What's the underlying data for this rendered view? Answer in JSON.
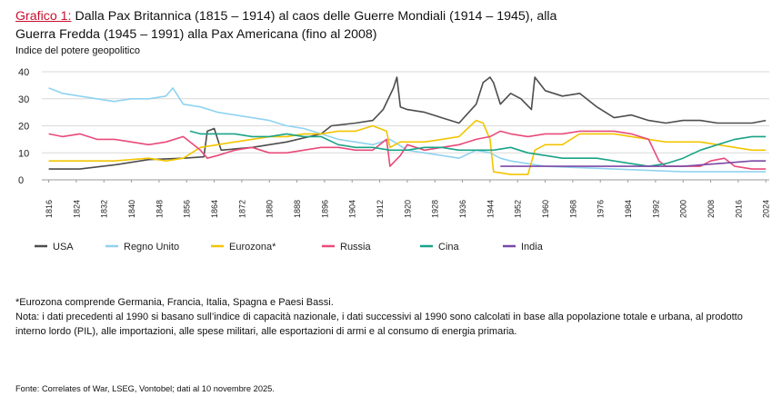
{
  "chart_data": {
    "type": "line",
    "title_lead": "Grafico 1:",
    "title": "Dalla Pax Britannica (1815 – 1914) al caos delle Guerre Mondiali (1914 – 1945), alla Guerra Fredda (1945 – 1991) alla Pax Americana (fino al 2008)",
    "ylabel": "Indice del potere geopolitico",
    "xlabel": "",
    "ylim": [
      0,
      40
    ],
    "yticks": [
      "0",
      "10",
      "20",
      "30",
      "40"
    ],
    "xlim": [
      1814,
      2025
    ],
    "xticks": [
      "1816",
      "1824",
      "1832",
      "1840",
      "1848",
      "1856",
      "1864",
      "1872",
      "1880",
      "1888",
      "1896",
      "1904",
      "1912",
      "1920",
      "1928",
      "1936",
      "1944",
      "1952",
      "1960",
      "1968",
      "1976",
      "1984",
      "1992",
      "2000",
      "2008",
      "2016",
      "2024"
    ],
    "grid": "horizontal",
    "legend_position": "bottom",
    "series": [
      {
        "name": "USA",
        "color": "#4d4d4d",
        "points": [
          [
            1816,
            4
          ],
          [
            1825,
            4
          ],
          [
            1835,
            5.5
          ],
          [
            1845,
            7.5
          ],
          [
            1855,
            8
          ],
          [
            1861,
            8.5
          ],
          [
            1862,
            18
          ],
          [
            1864,
            19
          ],
          [
            1866,
            11
          ],
          [
            1875,
            12
          ],
          [
            1885,
            14
          ],
          [
            1895,
            17
          ],
          [
            1898,
            20
          ],
          [
            1905,
            21
          ],
          [
            1910,
            22
          ],
          [
            1913,
            26
          ],
          [
            1916,
            34
          ],
          [
            1917,
            38
          ],
          [
            1918,
            27
          ],
          [
            1920,
            26
          ],
          [
            1925,
            25
          ],
          [
            1930,
            23
          ],
          [
            1935,
            21
          ],
          [
            1940,
            28
          ],
          [
            1942,
            36
          ],
          [
            1944,
            38
          ],
          [
            1945,
            36
          ],
          [
            1947,
            28
          ],
          [
            1950,
            32
          ],
          [
            1953,
            30
          ],
          [
            1956,
            26
          ],
          [
            1957,
            38
          ],
          [
            1960,
            33
          ],
          [
            1965,
            31
          ],
          [
            1970,
            32
          ],
          [
            1975,
            27
          ],
          [
            1980,
            23
          ],
          [
            1985,
            24
          ],
          [
            1990,
            22
          ],
          [
            1995,
            21
          ],
          [
            2000,
            22
          ],
          [
            2005,
            22
          ],
          [
            2010,
            21
          ],
          [
            2015,
            21
          ],
          [
            2020,
            21
          ],
          [
            2024,
            22
          ]
        ]
      },
      {
        "name": "Regno Unito",
        "color": "#8fd3ef",
        "points": [
          [
            1816,
            34
          ],
          [
            1820,
            32
          ],
          [
            1825,
            31
          ],
          [
            1830,
            30
          ],
          [
            1835,
            29
          ],
          [
            1840,
            30
          ],
          [
            1845,
            30
          ],
          [
            1850,
            31
          ],
          [
            1852,
            34
          ],
          [
            1855,
            28
          ],
          [
            1860,
            27
          ],
          [
            1865,
            25
          ],
          [
            1870,
            24
          ],
          [
            1875,
            23
          ],
          [
            1880,
            22
          ],
          [
            1885,
            20
          ],
          [
            1890,
            19
          ],
          [
            1895,
            17
          ],
          [
            1900,
            15
          ],
          [
            1905,
            14
          ],
          [
            1910,
            13
          ],
          [
            1915,
            15
          ],
          [
            1920,
            11
          ],
          [
            1925,
            10
          ],
          [
            1930,
            9
          ],
          [
            1935,
            8
          ],
          [
            1940,
            11
          ],
          [
            1944,
            10
          ],
          [
            1947,
            8
          ],
          [
            1950,
            7
          ],
          [
            1955,
            6
          ],
          [
            1960,
            5
          ],
          [
            1970,
            4.5
          ],
          [
            1980,
            4
          ],
          [
            1990,
            3.5
          ],
          [
            2000,
            3
          ],
          [
            2010,
            3
          ],
          [
            2024,
            3
          ]
        ]
      },
      {
        "name": "Eurozona*",
        "color": "#f2c500",
        "points": [
          [
            1816,
            7
          ],
          [
            1825,
            7
          ],
          [
            1835,
            7
          ],
          [
            1845,
            8
          ],
          [
            1850,
            7
          ],
          [
            1855,
            8
          ],
          [
            1860,
            12
          ],
          [
            1865,
            13
          ],
          [
            1870,
            14
          ],
          [
            1875,
            15
          ],
          [
            1880,
            16
          ],
          [
            1885,
            16
          ],
          [
            1890,
            17
          ],
          [
            1895,
            17
          ],
          [
            1900,
            18
          ],
          [
            1905,
            18
          ],
          [
            1910,
            20
          ],
          [
            1914,
            18
          ],
          [
            1915,
            12
          ],
          [
            1918,
            14
          ],
          [
            1920,
            14
          ],
          [
            1925,
            14
          ],
          [
            1930,
            15
          ],
          [
            1935,
            16
          ],
          [
            1940,
            22
          ],
          [
            1942,
            21
          ],
          [
            1944,
            15
          ],
          [
            1945,
            3
          ],
          [
            1950,
            2
          ],
          [
            1955,
            2
          ],
          [
            1957,
            11
          ],
          [
            1960,
            13
          ],
          [
            1965,
            13
          ],
          [
            1970,
            17
          ],
          [
            1975,
            17
          ],
          [
            1980,
            17
          ],
          [
            1985,
            16
          ],
          [
            1990,
            15
          ],
          [
            1995,
            14
          ],
          [
            2000,
            14
          ],
          [
            2005,
            14
          ],
          [
            2010,
            13
          ],
          [
            2015,
            12
          ],
          [
            2020,
            11
          ],
          [
            2024,
            11
          ]
        ]
      },
      {
        "name": "Russia",
        "color": "#e84a7a",
        "points": [
          [
            1816,
            17
          ],
          [
            1820,
            16
          ],
          [
            1825,
            17
          ],
          [
            1830,
            15
          ],
          [
            1835,
            15
          ],
          [
            1840,
            14
          ],
          [
            1845,
            13
          ],
          [
            1850,
            14
          ],
          [
            1855,
            16
          ],
          [
            1860,
            11
          ],
          [
            1862,
            8
          ],
          [
            1865,
            9
          ],
          [
            1870,
            11
          ],
          [
            1875,
            12
          ],
          [
            1880,
            10
          ],
          [
            1885,
            10
          ],
          [
            1890,
            11
          ],
          [
            1895,
            12
          ],
          [
            1900,
            12
          ],
          [
            1905,
            11
          ],
          [
            1910,
            11
          ],
          [
            1914,
            15
          ],
          [
            1915,
            5
          ],
          [
            1918,
            9
          ],
          [
            1920,
            13
          ],
          [
            1925,
            11
          ],
          [
            1930,
            12
          ],
          [
            1935,
            13
          ],
          [
            1940,
            15
          ],
          [
            1944,
            16
          ],
          [
            1947,
            18
          ],
          [
            1950,
            17
          ],
          [
            1955,
            16
          ],
          [
            1960,
            17
          ],
          [
            1965,
            17
          ],
          [
            1970,
            18
          ],
          [
            1975,
            18
          ],
          [
            1980,
            18
          ],
          [
            1985,
            17
          ],
          [
            1990,
            15
          ],
          [
            1993,
            7
          ],
          [
            1995,
            5
          ],
          [
            2000,
            5
          ],
          [
            2005,
            5
          ],
          [
            2008,
            7
          ],
          [
            2012,
            8
          ],
          [
            2015,
            5
          ],
          [
            2020,
            4
          ],
          [
            2024,
            4
          ]
        ]
      },
      {
        "name": "Cina",
        "color": "#1aa388",
        "points": [
          [
            1857,
            18
          ],
          [
            1860,
            17
          ],
          [
            1865,
            17
          ],
          [
            1870,
            17
          ],
          [
            1875,
            16
          ],
          [
            1880,
            16
          ],
          [
            1885,
            17
          ],
          [
            1890,
            16
          ],
          [
            1895,
            16
          ],
          [
            1900,
            13
          ],
          [
            1905,
            12
          ],
          [
            1910,
            12
          ],
          [
            1915,
            11
          ],
          [
            1920,
            11
          ],
          [
            1925,
            12
          ],
          [
            1930,
            12
          ],
          [
            1935,
            11
          ],
          [
            1940,
            11
          ],
          [
            1945,
            11
          ],
          [
            1950,
            12
          ],
          [
            1955,
            10
          ],
          [
            1960,
            9
          ],
          [
            1965,
            8
          ],
          [
            1970,
            8
          ],
          [
            1975,
            8
          ],
          [
            1980,
            7
          ],
          [
            1985,
            6
          ],
          [
            1990,
            5
          ],
          [
            1995,
            6
          ],
          [
            2000,
            8
          ],
          [
            2005,
            11
          ],
          [
            2010,
            13
          ],
          [
            2015,
            15
          ],
          [
            2020,
            16
          ],
          [
            2024,
            16
          ]
        ]
      },
      {
        "name": "India",
        "color": "#7b48a6",
        "points": [
          [
            1947,
            5
          ],
          [
            1950,
            5
          ],
          [
            1955,
            5
          ],
          [
            1960,
            5
          ],
          [
            1965,
            5
          ],
          [
            1970,
            5
          ],
          [
            1975,
            5
          ],
          [
            1980,
            5
          ],
          [
            1985,
            5
          ],
          [
            1990,
            5
          ],
          [
            1995,
            5
          ],
          [
            2000,
            5
          ],
          [
            2005,
            5.5
          ],
          [
            2010,
            6
          ],
          [
            2015,
            6.5
          ],
          [
            2020,
            7
          ],
          [
            2024,
            7
          ]
        ]
      }
    ]
  },
  "notes": {
    "line1": "*Eurozona comprende Germania, Francia, Italia, Spagna e Paesi Bassi.",
    "line2": "Nota: i dati precedenti al 1990 si basano sull’indice di capacità nazionale, i dati successivi al 1990 sono calcolati in base alla popolazione totale e urbana, al prodotto interno lordo (PIL), alle importazioni, alle spese militari, alle esportazioni di armi e al consumo di energia primaria."
  },
  "source": "Fonte: Correlates of War, LSEG, Vontobel; dati al 10 novembre 2025."
}
